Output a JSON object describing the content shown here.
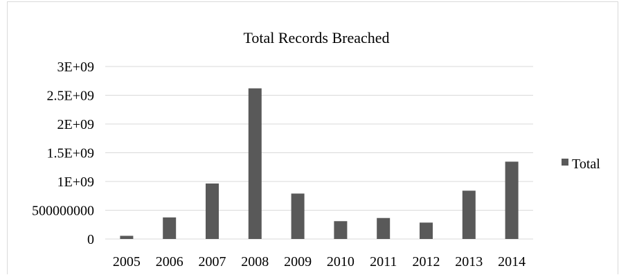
{
  "chart_data": {
    "type": "bar",
    "title": "Total Records Breached",
    "xlabel": "",
    "ylabel": "",
    "categories": [
      "2005",
      "2006",
      "2007",
      "2008",
      "2009",
      "2010",
      "2011",
      "2012",
      "2013",
      "2014"
    ],
    "series": [
      {
        "name": "Total",
        "values": [
          55000000,
          375000000,
          965000000,
          2620000000,
          790000000,
          310000000,
          365000000,
          285000000,
          840000000,
          1345000000
        ],
        "color": "#595959"
      }
    ],
    "y_ticks": [
      0,
      500000000,
      1000000000,
      1500000000,
      2000000000,
      2500000000,
      3000000000
    ],
    "y_tick_labels": [
      "0",
      "500000000",
      "1E+09",
      "1.5E+09",
      "2E+09",
      "2.5E+09",
      "3E+09"
    ],
    "ylim": [
      0,
      3000000000
    ],
    "grid": true,
    "gridline_color": "#d9d9d9",
    "legend_position": "right"
  }
}
